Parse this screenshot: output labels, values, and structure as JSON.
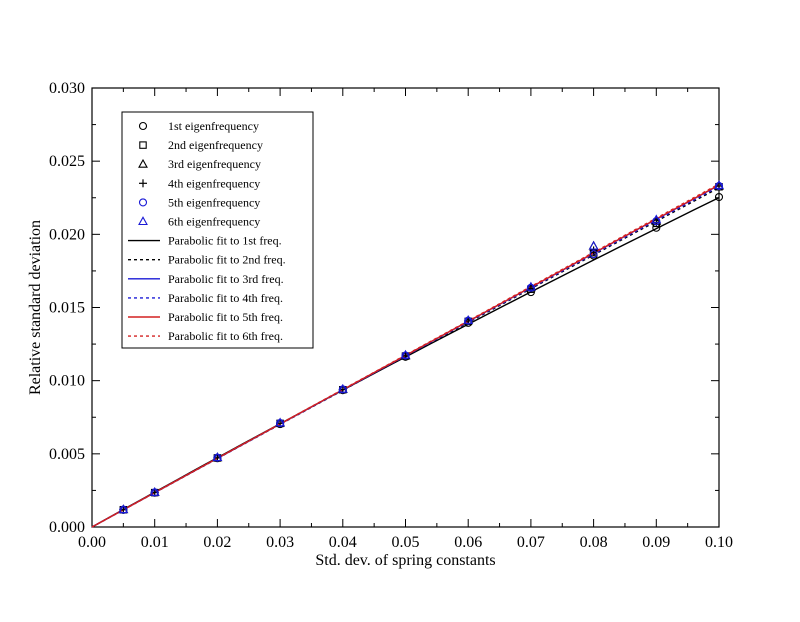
{
  "chart_data": {
    "type": "line",
    "xlabel": "Std. dev. of spring constants",
    "ylabel": "Relative standard deviation",
    "xlim": [
      0.0,
      0.1
    ],
    "ylim": [
      0.0,
      0.03
    ],
    "x_ticks": [
      "0.00",
      "0.01",
      "0.02",
      "0.03",
      "0.04",
      "0.05",
      "0.06",
      "0.07",
      "0.08",
      "0.09",
      "0.10"
    ],
    "y_ticks": [
      "0.000",
      "0.005",
      "0.010",
      "0.015",
      "0.020",
      "0.025",
      "0.030"
    ],
    "grid": false,
    "legend_position": "top-left",
    "x": [
      0.005,
      0.01,
      0.02,
      0.03,
      0.04,
      0.05,
      0.06,
      0.07,
      0.08,
      0.09,
      0.1
    ],
    "points": [
      {
        "name": "1st eigenfrequency",
        "marker": "circle",
        "color": "#000000",
        "values": [
          0.00117,
          0.00234,
          0.0047,
          0.00703,
          0.00935,
          0.01163,
          0.01395,
          0.01605,
          0.01855,
          0.02045,
          0.02255
        ]
      },
      {
        "name": "2nd eigenfrequency",
        "marker": "square",
        "color": "#000000",
        "values": [
          0.00118,
          0.00235,
          0.00472,
          0.00708,
          0.00938,
          0.01168,
          0.01405,
          0.01625,
          0.01875,
          0.02075,
          0.02325
        ]
      },
      {
        "name": "3rd eigenfrequency",
        "marker": "triangle",
        "color": "#000000",
        "values": [
          0.00119,
          0.00236,
          0.00474,
          0.0071,
          0.0094,
          0.0117,
          0.0141,
          0.01635,
          0.0192,
          0.0209,
          0.0233
        ]
      },
      {
        "name": "4th eigenfrequency",
        "marker": "plus",
        "color": "#000000",
        "values": [
          0.00118,
          0.00235,
          0.00473,
          0.00709,
          0.00939,
          0.0117,
          0.01408,
          0.0163,
          0.0189,
          0.0208,
          0.0233
        ]
      },
      {
        "name": "5th eigenfrequency",
        "marker": "circle",
        "color": "#1a1ad6",
        "values": [
          0.00118,
          0.00236,
          0.00474,
          0.0071,
          0.0094,
          0.01172,
          0.0141,
          0.01635,
          0.01865,
          0.0209,
          0.0233
        ]
      },
      {
        "name": "6th eigenfrequency",
        "marker": "triangle",
        "color": "#1a1ad6",
        "values": [
          0.00119,
          0.00237,
          0.00475,
          0.00712,
          0.00942,
          0.01175,
          0.01412,
          0.0164,
          0.0192,
          0.021,
          0.02335
        ]
      }
    ],
    "fits": [
      {
        "name": "Parabolic fit to 1st freq.",
        "color": "#000000",
        "dash": "solid",
        "coeffs": [
          0.0,
          0.2397,
          -0.1458
        ]
      },
      {
        "name": "Parabolic fit to 2nd freq.",
        "color": "#000000",
        "dash": "dotted",
        "coeffs": [
          0.0,
          0.2346,
          -0.0277
        ]
      },
      {
        "name": "Parabolic fit to 3rd freq.",
        "color": "#1a1ad6",
        "dash": "solid",
        "coeffs": [
          0.0,
          0.2349,
          -0.0136
        ]
      },
      {
        "name": "Parabolic fit to 4th freq.",
        "color": "#1a1ad6",
        "dash": "dotted",
        "coeffs": [
          0.0,
          0.2347,
          -0.02
        ]
      },
      {
        "name": "Parabolic fit to 5th freq.",
        "color": "#d42020",
        "dash": "solid",
        "coeffs": [
          0.0,
          0.2351,
          -0.0137
        ]
      },
      {
        "name": "Parabolic fit to 6th freq.",
        "color": "#d42020",
        "dash": "dotted",
        "coeffs": [
          0.0,
          0.2355,
          -0.011
        ]
      }
    ]
  }
}
